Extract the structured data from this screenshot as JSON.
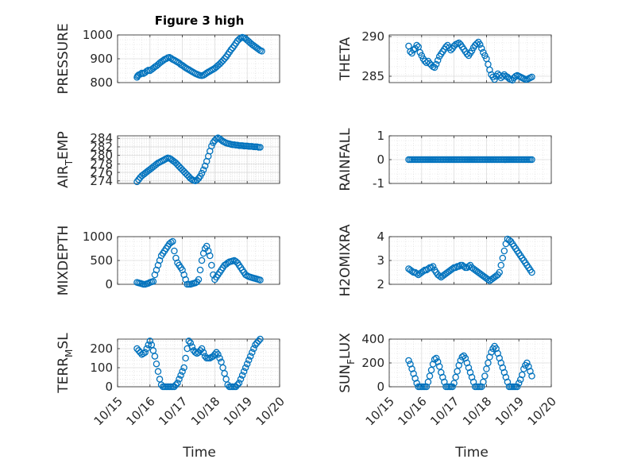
{
  "figure": {
    "title": "Figure 3 high",
    "xlabel": "Time",
    "xticks": [
      "10/15",
      "10/16",
      "10/17",
      "10/18",
      "10/19",
      "10/20"
    ],
    "marker_color": "#0072BD"
  },
  "chart_data": [
    {
      "type": "scatter",
      "title": "Figure 3 high",
      "ylabel": "PRESSURE",
      "xlabel": "",
      "xlim": [
        0,
        5
      ],
      "ylim": [
        800,
        1000
      ],
      "yticks": [
        800,
        900,
        1000
      ],
      "grid": true,
      "x": [
        0.6,
        0.62,
        0.65,
        0.7,
        0.75,
        0.8,
        0.85,
        0.9,
        0.95,
        1.0,
        1.05,
        1.1,
        1.15,
        1.2,
        1.25,
        1.3,
        1.35,
        1.4,
        1.45,
        1.5,
        1.55,
        1.6,
        1.65,
        1.7,
        1.75,
        1.8,
        1.85,
        1.9,
        1.95,
        2.0,
        2.05,
        2.1,
        2.15,
        2.2,
        2.25,
        2.3,
        2.35,
        2.4,
        2.45,
        2.5,
        2.55,
        2.6,
        2.65,
        2.7,
        2.75,
        2.8,
        2.85,
        2.9,
        2.95,
        3.0,
        3.05,
        3.1,
        3.15,
        3.2,
        3.25,
        3.3,
        3.35,
        3.4,
        3.45,
        3.5,
        3.55,
        3.6,
        3.65,
        3.7,
        3.75,
        3.8,
        3.85,
        3.9,
        3.95,
        4.0,
        4.05,
        4.1,
        4.15,
        4.2,
        4.25,
        4.3,
        4.35,
        4.4,
        4.45
      ],
      "y": [
        822,
        828,
        832,
        835,
        840,
        838,
        842,
        848,
        852,
        850,
        855,
        860,
        866,
        870,
        876,
        882,
        887,
        892,
        897,
        900,
        904,
        906,
        902,
        897,
        894,
        890,
        886,
        882,
        876,
        872,
        867,
        862,
        858,
        854,
        850,
        846,
        842,
        838,
        835,
        832,
        830,
        829,
        831,
        835,
        840,
        844,
        848,
        852,
        856,
        860,
        866,
        872,
        878,
        885,
        892,
        900,
        908,
        918,
        928,
        938,
        946,
        955,
        965,
        975,
        982,
        987,
        990,
        988,
        984,
        978,
        972,
        966,
        960,
        955,
        950,
        945,
        940,
        935,
        932
      ]
    },
    {
      "type": "scatter",
      "ylabel": "THETA",
      "xlabel": "",
      "xlim": [
        0,
        5
      ],
      "ylim": [
        284.2,
        290.2
      ],
      "yticks": [
        285,
        290
      ],
      "grid": true,
      "x": [
        0.6,
        0.65,
        0.7,
        0.75,
        0.8,
        0.85,
        0.9,
        0.95,
        1.0,
        1.05,
        1.1,
        1.15,
        1.2,
        1.25,
        1.3,
        1.35,
        1.4,
        1.45,
        1.5,
        1.55,
        1.6,
        1.65,
        1.7,
        1.75,
        1.8,
        1.85,
        1.9,
        1.95,
        2.0,
        2.05,
        2.1,
        2.15,
        2.2,
        2.25,
        2.3,
        2.35,
        2.4,
        2.45,
        2.5,
        2.55,
        2.6,
        2.65,
        2.7,
        2.75,
        2.8,
        2.85,
        2.9,
        2.95,
        3.0,
        3.05,
        3.1,
        3.15,
        3.2,
        3.25,
        3.3,
        3.35,
        3.4,
        3.45,
        3.5,
        3.55,
        3.6,
        3.65,
        3.7,
        3.75,
        3.8,
        3.85,
        3.9,
        3.95,
        4.0,
        4.05,
        4.1,
        4.15,
        4.2,
        4.25,
        4.3,
        4.35,
        4.4
      ],
      "y": [
        288.8,
        288.1,
        287.9,
        288.3,
        288.5,
        288.9,
        288.7,
        288.0,
        287.6,
        287.2,
        286.9,
        286.7,
        286.9,
        286.6,
        286.4,
        286.2,
        286.1,
        286.5,
        287.0,
        287.5,
        287.8,
        288.1,
        288.4,
        288.7,
        288.9,
        288.6,
        288.3,
        288.5,
        288.8,
        289.0,
        289.1,
        289.2,
        289.0,
        288.7,
        288.4,
        288.1,
        287.8,
        287.6,
        287.9,
        288.2,
        288.6,
        288.9,
        289.1,
        289.3,
        289.0,
        288.5,
        288.0,
        287.6,
        287.2,
        286.5,
        285.8,
        285.2,
        284.9,
        284.6,
        285.0,
        285.3,
        285.1,
        284.8,
        285.0,
        285.2,
        285.0,
        284.9,
        284.7,
        284.6,
        284.5,
        284.8,
        285.0,
        285.1,
        285.0,
        284.9,
        284.8,
        284.7,
        284.6,
        284.6,
        284.7,
        284.8,
        284.9
      ]
    },
    {
      "type": "scatter",
      "ylabel": "AIR_TEMP",
      "xlabel": "",
      "xlim": [
        0,
        5
      ],
      "ylim": [
        273.4,
        284.6
      ],
      "yticks": [
        274,
        276,
        278,
        280,
        282,
        284
      ],
      "grid": true,
      "x": [
        0.6,
        0.65,
        0.7,
        0.75,
        0.8,
        0.85,
        0.9,
        0.95,
        1.0,
        1.05,
        1.1,
        1.15,
        1.2,
        1.25,
        1.3,
        1.35,
        1.4,
        1.45,
        1.5,
        1.55,
        1.6,
        1.65,
        1.7,
        1.75,
        1.8,
        1.85,
        1.9,
        1.95,
        2.0,
        2.05,
        2.1,
        2.15,
        2.2,
        2.25,
        2.3,
        2.35,
        2.4,
        2.45,
        2.5,
        2.55,
        2.6,
        2.65,
        2.7,
        2.75,
        2.8,
        2.85,
        2.9,
        2.95,
        3.0,
        3.05,
        3.1,
        3.15,
        3.2,
        3.25,
        3.3,
        3.35,
        3.4,
        3.45,
        3.5,
        3.55,
        3.6,
        3.65,
        3.7,
        3.75,
        3.8,
        3.85,
        3.9,
        3.95,
        4.0,
        4.05,
        4.1,
        4.15,
        4.2,
        4.25,
        4.3,
        4.35,
        4.4
      ],
      "y": [
        273.8,
        274.3,
        274.8,
        275.2,
        275.5,
        275.8,
        276.1,
        276.4,
        276.7,
        277.0,
        277.3,
        277.6,
        277.9,
        278.2,
        278.4,
        278.6,
        278.8,
        279.0,
        279.2,
        279.4,
        279.3,
        279.1,
        278.8,
        278.5,
        278.2,
        277.8,
        277.4,
        277.0,
        276.6,
        276.2,
        275.8,
        275.4,
        275.0,
        274.6,
        274.3,
        274.1,
        274.0,
        274.2,
        274.6,
        275.1,
        275.8,
        276.6,
        277.5,
        278.6,
        279.8,
        281.0,
        282.2,
        283.0,
        283.5,
        283.9,
        284.1,
        283.9,
        283.6,
        283.3,
        283.1,
        282.9,
        282.8,
        282.7,
        282.6,
        282.5,
        282.5,
        282.4,
        282.4,
        282.3,
        282.3,
        282.3,
        282.2,
        282.2,
        282.2,
        282.1,
        282.1,
        282.1,
        282.0,
        282.0,
        282.0,
        281.9,
        281.9
      ]
    },
    {
      "type": "scatter",
      "ylabel": "RAINFALL",
      "xlabel": "",
      "xlim": [
        0,
        5
      ],
      "ylim": [
        -1,
        1
      ],
      "yticks": [
        -1,
        0,
        1
      ],
      "grid": true,
      "x": [
        0.6,
        0.65,
        0.7,
        0.75,
        0.8,
        0.85,
        0.9,
        0.95,
        1.0,
        1.05,
        1.1,
        1.15,
        1.2,
        1.25,
        1.3,
        1.35,
        1.4,
        1.45,
        1.5,
        1.55,
        1.6,
        1.65,
        1.7,
        1.75,
        1.8,
        1.85,
        1.9,
        1.95,
        2.0,
        2.05,
        2.1,
        2.15,
        2.2,
        2.25,
        2.3,
        2.35,
        2.4,
        2.45,
        2.5,
        2.55,
        2.6,
        2.65,
        2.7,
        2.75,
        2.8,
        2.85,
        2.9,
        2.95,
        3.0,
        3.05,
        3.1,
        3.15,
        3.2,
        3.25,
        3.3,
        3.35,
        3.4,
        3.45,
        3.5,
        3.55,
        3.6,
        3.65,
        3.7,
        3.75,
        3.8,
        3.85,
        3.9,
        3.95,
        4.0,
        4.05,
        4.1,
        4.15,
        4.2,
        4.25,
        4.3,
        4.35,
        4.4
      ],
      "y": [
        0,
        0,
        0,
        0,
        0,
        0,
        0,
        0,
        0,
        0,
        0,
        0,
        0,
        0,
        0,
        0,
        0,
        0,
        0,
        0,
        0,
        0,
        0,
        0,
        0,
        0,
        0,
        0,
        0,
        0,
        0,
        0,
        0,
        0,
        0,
        0,
        0,
        0,
        0,
        0,
        0,
        0,
        0,
        0,
        0,
        0,
        0,
        0,
        0,
        0,
        0,
        0,
        0,
        0,
        0,
        0,
        0,
        0,
        0,
        0,
        0,
        0,
        0,
        0,
        0,
        0,
        0,
        0,
        0,
        0,
        0,
        0,
        0,
        0,
        0,
        0,
        0
      ]
    },
    {
      "type": "scatter",
      "ylabel": "MIXDEPTH",
      "xlabel": "",
      "xlim": [
        0,
        5
      ],
      "ylim": [
        0,
        1000
      ],
      "yticks": [
        0,
        500,
        1000
      ],
      "grid": true,
      "x": [
        0.6,
        0.65,
        0.7,
        0.75,
        0.8,
        0.85,
        0.9,
        0.95,
        1.0,
        1.05,
        1.1,
        1.15,
        1.2,
        1.25,
        1.3,
        1.35,
        1.4,
        1.45,
        1.5,
        1.55,
        1.6,
        1.65,
        1.7,
        1.75,
        1.8,
        1.85,
        1.9,
        1.95,
        2.0,
        2.05,
        2.1,
        2.15,
        2.2,
        2.25,
        2.3,
        2.35,
        2.4,
        2.45,
        2.5,
        2.55,
        2.6,
        2.65,
        2.7,
        2.75,
        2.8,
        2.85,
        2.9,
        2.95,
        3.0,
        3.05,
        3.1,
        3.15,
        3.2,
        3.25,
        3.3,
        3.35,
        3.4,
        3.45,
        3.5,
        3.55,
        3.6,
        3.65,
        3.7,
        3.75,
        3.8,
        3.85,
        3.9,
        3.95,
        4.0,
        4.05,
        4.1,
        4.15,
        4.2,
        4.25,
        4.3,
        4.35,
        4.4
      ],
      "y": [
        40,
        30,
        20,
        10,
        0,
        0,
        10,
        20,
        40,
        50,
        60,
        200,
        300,
        400,
        500,
        600,
        650,
        700,
        750,
        800,
        850,
        880,
        900,
        700,
        550,
        450,
        400,
        350,
        300,
        200,
        100,
        0,
        0,
        0,
        10,
        20,
        30,
        50,
        100,
        300,
        500,
        650,
        750,
        800,
        700,
        600,
        400,
        200,
        100,
        150,
        200,
        250,
        300,
        350,
        400,
        420,
        450,
        470,
        480,
        490,
        500,
        480,
        450,
        400,
        350,
        300,
        250,
        200,
        180,
        160,
        150,
        140,
        130,
        120,
        110,
        100,
        90
      ]
    },
    {
      "type": "scatter",
      "ylabel": "H2OMIXRA",
      "xlabel": "",
      "xlim": [
        0,
        5
      ],
      "ylim": [
        2,
        4
      ],
      "yticks": [
        2,
        3,
        4
      ],
      "grid": true,
      "x": [
        0.6,
        0.65,
        0.7,
        0.75,
        0.8,
        0.85,
        0.9,
        0.95,
        1.0,
        1.05,
        1.1,
        1.15,
        1.2,
        1.25,
        1.3,
        1.35,
        1.4,
        1.45,
        1.5,
        1.55,
        1.6,
        1.65,
        1.7,
        1.75,
        1.8,
        1.85,
        1.9,
        1.95,
        2.0,
        2.05,
        2.1,
        2.15,
        2.2,
        2.25,
        2.3,
        2.35,
        2.4,
        2.45,
        2.5,
        2.55,
        2.6,
        2.65,
        2.7,
        2.75,
        2.8,
        2.85,
        2.9,
        2.95,
        3.0,
        3.05,
        3.1,
        3.15,
        3.2,
        3.25,
        3.3,
        3.35,
        3.4,
        3.45,
        3.5,
        3.55,
        3.6,
        3.65,
        3.7,
        3.75,
        3.8,
        3.85,
        3.9,
        3.95,
        4.0,
        4.05,
        4.1,
        4.15,
        4.2,
        4.25,
        4.3,
        4.35,
        4.4
      ],
      "y": [
        2.65,
        2.6,
        2.55,
        2.5,
        2.5,
        2.45,
        2.4,
        2.45,
        2.5,
        2.55,
        2.6,
        2.6,
        2.65,
        2.7,
        2.7,
        2.75,
        2.6,
        2.5,
        2.4,
        2.35,
        2.3,
        2.35,
        2.4,
        2.45,
        2.5,
        2.55,
        2.6,
        2.65,
        2.7,
        2.7,
        2.75,
        2.75,
        2.8,
        2.8,
        2.75,
        2.7,
        2.7,
        2.75,
        2.8,
        2.7,
        2.65,
        2.6,
        2.55,
        2.5,
        2.45,
        2.4,
        2.35,
        2.3,
        2.25,
        2.2,
        2.15,
        2.2,
        2.25,
        2.3,
        2.35,
        2.4,
        2.5,
        2.8,
        3.1,
        3.4,
        3.7,
        3.9,
        3.85,
        3.8,
        3.7,
        3.6,
        3.5,
        3.4,
        3.3,
        3.2,
        3.1,
        3.0,
        2.9,
        2.8,
        2.7,
        2.6,
        2.5
      ]
    },
    {
      "type": "scatter",
      "ylabel": "TERR_MSL",
      "xlabel": "Time",
      "xlim": [
        0,
        5
      ],
      "ylim": [
        0,
        250
      ],
      "yticks": [
        0,
        100,
        200
      ],
      "grid": true,
      "x": [
        0.6,
        0.65,
        0.7,
        0.75,
        0.8,
        0.85,
        0.9,
        0.95,
        1.0,
        1.05,
        1.1,
        1.15,
        1.2,
        1.25,
        1.3,
        1.35,
        1.4,
        1.45,
        1.5,
        1.55,
        1.6,
        1.65,
        1.7,
        1.75,
        1.8,
        1.85,
        1.9,
        1.95,
        2.0,
        2.05,
        2.1,
        2.15,
        2.2,
        2.25,
        2.3,
        2.35,
        2.4,
        2.45,
        2.5,
        2.55,
        2.6,
        2.65,
        2.7,
        2.75,
        2.8,
        2.85,
        2.9,
        2.95,
        3.0,
        3.05,
        3.1,
        3.15,
        3.2,
        3.25,
        3.3,
        3.35,
        3.4,
        3.45,
        3.5,
        3.55,
        3.6,
        3.65,
        3.7,
        3.75,
        3.8,
        3.85,
        3.9,
        3.95,
        4.0,
        4.05,
        4.1,
        4.15,
        4.2,
        4.25,
        4.3,
        4.35,
        4.4
      ],
      "y": [
        200,
        190,
        180,
        170,
        175,
        180,
        200,
        220,
        240,
        220,
        190,
        160,
        120,
        80,
        40,
        10,
        0,
        0,
        0,
        0,
        0,
        0,
        0,
        0,
        10,
        20,
        40,
        60,
        80,
        100,
        150,
        200,
        240,
        230,
        210,
        190,
        180,
        175,
        180,
        190,
        200,
        180,
        160,
        150,
        150,
        150,
        155,
        160,
        170,
        180,
        170,
        150,
        130,
        100,
        70,
        40,
        10,
        0,
        0,
        0,
        0,
        0,
        10,
        20,
        40,
        60,
        80,
        100,
        120,
        140,
        160,
        180,
        200,
        220,
        230,
        240,
        250
      ]
    },
    {
      "type": "scatter",
      "ylabel": "SUN_FLUX",
      "xlabel": "Time",
      "xlim": [
        0,
        5
      ],
      "ylim": [
        0,
        400
      ],
      "yticks": [
        0,
        200,
        400
      ],
      "grid": true,
      "x": [
        0.6,
        0.65,
        0.7,
        0.75,
        0.8,
        0.85,
        0.9,
        0.95,
        1.0,
        1.05,
        1.1,
        1.15,
        1.2,
        1.25,
        1.3,
        1.35,
        1.4,
        1.45,
        1.5,
        1.55,
        1.6,
        1.65,
        1.7,
        1.75,
        1.8,
        1.85,
        1.9,
        1.95,
        2.0,
        2.05,
        2.1,
        2.15,
        2.2,
        2.25,
        2.3,
        2.35,
        2.4,
        2.45,
        2.5,
        2.55,
        2.6,
        2.65,
        2.7,
        2.75,
        2.8,
        2.85,
        2.9,
        2.95,
        3.0,
        3.05,
        3.1,
        3.15,
        3.2,
        3.25,
        3.3,
        3.35,
        3.4,
        3.45,
        3.5,
        3.55,
        3.6,
        3.65,
        3.7,
        3.75,
        3.8,
        3.85,
        3.9,
        3.95,
        4.0,
        4.05,
        4.1,
        4.15,
        4.2,
        4.25,
        4.3,
        4.35,
        4.4
      ],
      "y": [
        220,
        190,
        150,
        110,
        70,
        30,
        0,
        0,
        0,
        0,
        0,
        0,
        40,
        90,
        140,
        190,
        230,
        240,
        210,
        170,
        120,
        80,
        40,
        0,
        0,
        0,
        0,
        0,
        30,
        80,
        130,
        180,
        220,
        250,
        260,
        240,
        200,
        160,
        120,
        80,
        40,
        0,
        0,
        0,
        0,
        0,
        40,
        90,
        150,
        200,
        250,
        290,
        320,
        340,
        320,
        280,
        240,
        200,
        160,
        120,
        80,
        40,
        0,
        0,
        0,
        0,
        0,
        0,
        30,
        60,
        100,
        150,
        180,
        200,
        170,
        130,
        90
      ]
    }
  ]
}
